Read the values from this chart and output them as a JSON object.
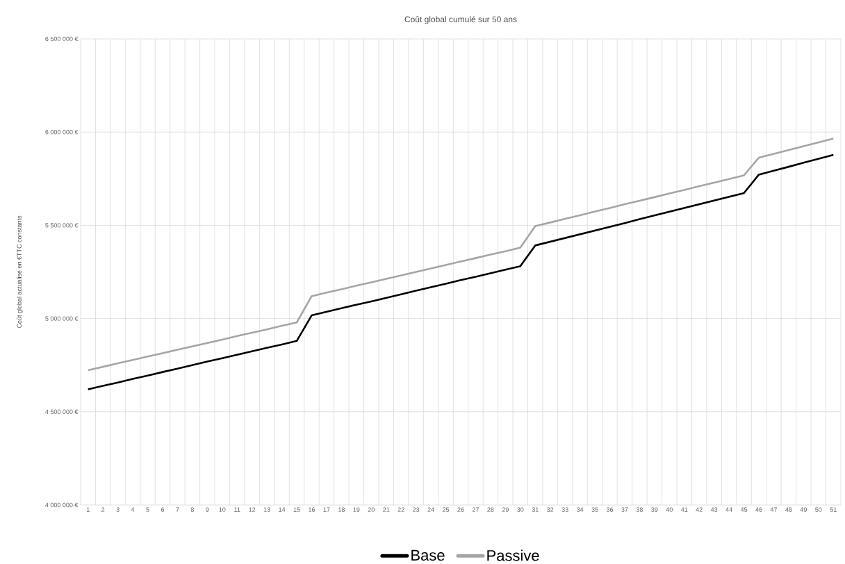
{
  "chart_data": {
    "type": "line",
    "title": "Coût global cumulé sur 50 ans",
    "ylabel": "Coût global actualisé en €TTC constants",
    "categories": [
      "1",
      "2",
      "3",
      "4",
      "5",
      "6",
      "7",
      "8",
      "9",
      "10",
      "11",
      "12",
      "13",
      "14",
      "15",
      "16",
      "17",
      "18",
      "19",
      "20",
      "21",
      "22",
      "23",
      "24",
      "25",
      "26",
      "27",
      "28",
      "29",
      "30",
      "31",
      "32",
      "33",
      "34",
      "35",
      "36",
      "37",
      "38",
      "39",
      "40",
      "41",
      "42",
      "43",
      "44",
      "45",
      "46",
      "47",
      "48",
      "49",
      "50",
      "51"
    ],
    "series": [
      {
        "name": "Base",
        "color": "#000000",
        "values": [
          4620000,
          4639000,
          4657000,
          4676000,
          4694000,
          4713000,
          4731000,
          4750000,
          4769000,
          4787000,
          4806000,
          4824000,
          4843000,
          4861000,
          4880000,
          5017000,
          5036000,
          5055000,
          5074000,
          5092000,
          5111000,
          5130000,
          5149000,
          5168000,
          5187000,
          5206000,
          5224000,
          5243000,
          5262000,
          5281000,
          5392000,
          5412000,
          5432000,
          5452000,
          5472000,
          5492000,
          5512000,
          5533000,
          5553000,
          5573000,
          5593000,
          5613000,
          5633000,
          5653000,
          5673000,
          5772000,
          5793000,
          5814000,
          5836000,
          5857000,
          5878000
        ]
      },
      {
        "name": "Passive",
        "color": "#a5a5a5",
        "values": [
          4723000,
          4741000,
          4760000,
          4778000,
          4796000,
          4814000,
          4833000,
          4851000,
          4869000,
          4887000,
          4906000,
          4924000,
          4942000,
          4961000,
          4979000,
          5120000,
          5139000,
          5157000,
          5176000,
          5194000,
          5213000,
          5231000,
          5250000,
          5269000,
          5287000,
          5306000,
          5324000,
          5343000,
          5361000,
          5380000,
          5496000,
          5515000,
          5535000,
          5554000,
          5574000,
          5593000,
          5613000,
          5632000,
          5651000,
          5671000,
          5690000,
          5710000,
          5729000,
          5748000,
          5768000,
          5863000,
          5883000,
          5904000,
          5924000,
          5945000,
          5965000
        ]
      }
    ],
    "ylim": [
      4000000,
      6500000
    ],
    "yticks": [
      {
        "value": 4000000,
        "label": "4 000 000 €"
      },
      {
        "value": 4500000,
        "label": "4 500 000 €"
      },
      {
        "value": 5000000,
        "label": "5 000 000 €"
      },
      {
        "value": 5500000,
        "label": "5 500 000 €"
      },
      {
        "value": 6000000,
        "label": "6 000 000 €"
      },
      {
        "value": 6500000,
        "label": "6 500 000 €"
      }
    ],
    "grid": true,
    "legend": "bottom",
    "marker": "none",
    "line_style": "solid"
  }
}
